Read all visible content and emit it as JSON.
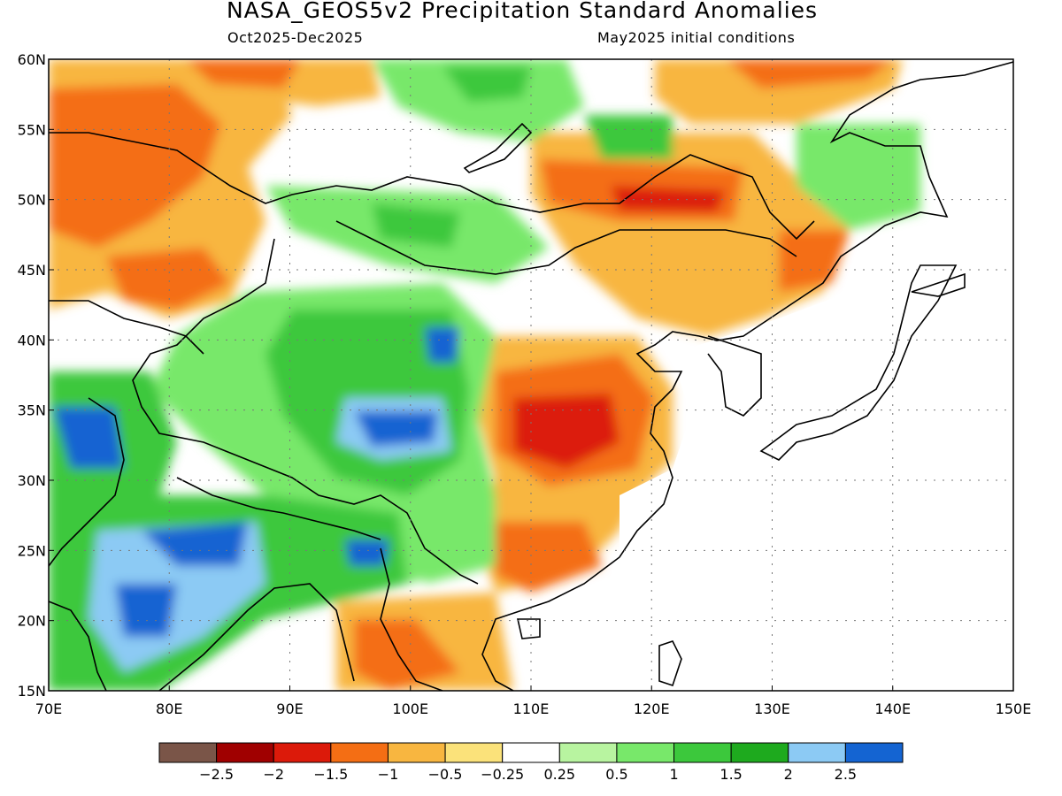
{
  "title": "NASA_GEOS5v2 Precipitation Standard Anomalies",
  "period": "Oct2025-Dec2025",
  "initial_conditions": "May2025 initial conditions",
  "map": {
    "lon_range": [
      70,
      150
    ],
    "lat_range": [
      15,
      60
    ],
    "lat_ticks": [
      {
        "value": 60,
        "label": "60N"
      },
      {
        "value": 55,
        "label": "55N"
      },
      {
        "value": 50,
        "label": "50N"
      },
      {
        "value": 45,
        "label": "45N"
      },
      {
        "value": 40,
        "label": "40N"
      },
      {
        "value": 35,
        "label": "35N"
      },
      {
        "value": 30,
        "label": "30N"
      },
      {
        "value": 25,
        "label": "25N"
      },
      {
        "value": 20,
        "label": "20N"
      },
      {
        "value": 15,
        "label": "15N"
      }
    ],
    "lon_ticks": [
      {
        "value": 70,
        "label": "70E"
      },
      {
        "value": 80,
        "label": "80E"
      },
      {
        "value": 90,
        "label": "90E"
      },
      {
        "value": 100,
        "label": "100E"
      },
      {
        "value": 110,
        "label": "110E"
      },
      {
        "value": 120,
        "label": "120E"
      },
      {
        "value": 130,
        "label": "130E"
      },
      {
        "value": 140,
        "label": "140E"
      },
      {
        "value": 150,
        "label": "150E"
      }
    ],
    "grid": true
  },
  "colorbar": {
    "colors": [
      "#7a5548",
      "#a00000",
      "#dc1a0a",
      "#f46e14",
      "#f8b640",
      "#fbe27a",
      "#ffffff",
      "#b8f4a0",
      "#78e86a",
      "#3cc83c",
      "#1eaa1e",
      "#8ccaf4",
      "#1464d2"
    ],
    "labels": [
      "-2.5",
      "-2",
      "-1.5",
      "-1",
      "-0.5",
      "-0.25",
      "0.25",
      "0.5",
      "1",
      "1.5",
      "2",
      "2.5"
    ]
  }
}
